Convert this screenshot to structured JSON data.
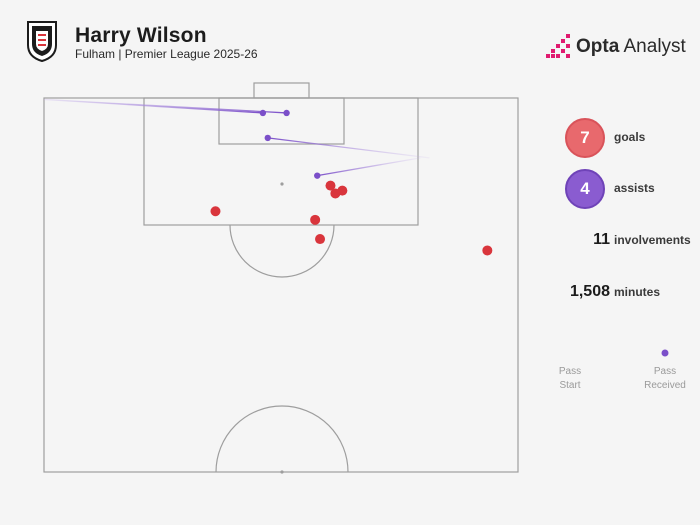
{
  "header": {
    "player_name": "Harry Wilson",
    "subtitle": "Fulham | Premier League 2025-26",
    "brand_bold": "Opta",
    "brand_rest": " Analyst",
    "crest_icon": "fulham-crest-icon",
    "brand_icon": "opta-logo-icon"
  },
  "colors": {
    "background": "#f5f5f5",
    "pitch_line": "#9e9e9e",
    "goal": "#d9353c",
    "goal_badge": "#e8696d",
    "assist": "#7b4fc9",
    "assist_badge": "#8a5cd0"
  },
  "stats": [
    {
      "value": "7",
      "label": "goals",
      "badge": "goal"
    },
    {
      "value": "4",
      "label": "assists",
      "badge": "assist"
    },
    {
      "value": "11",
      "label": "involvements",
      "badge": null
    },
    {
      "value": "1,508",
      "label": "minutes",
      "badge": null
    }
  ],
  "legend": {
    "start_label": "Pass\nStart",
    "end_label": "Pass\nReceived"
  },
  "chart_data": {
    "type": "scatter",
    "title": "",
    "pitch": "half-pitch, attacking goal at top; coordinates in metres, x 0-68 across, y 0-52.5 from goal line",
    "goals": [
      {
        "x": 24.6,
        "y": 15.9
      },
      {
        "x": 41.1,
        "y": 12.3
      },
      {
        "x": 41.8,
        "y": 13.4
      },
      {
        "x": 42.8,
        "y": 13.0
      },
      {
        "x": 38.9,
        "y": 17.1
      },
      {
        "x": 39.6,
        "y": 19.8
      },
      {
        "x": 63.6,
        "y": 21.4
      }
    ],
    "assists": [
      {
        "start": {
          "x": 0.0,
          "y": 0.2
        },
        "end": {
          "x": 34.8,
          "y": 2.1
        }
      },
      {
        "start": {
          "x": 0.0,
          "y": 0.2
        },
        "end": {
          "x": 31.4,
          "y": 2.1
        }
      },
      {
        "start": {
          "x": 55.3,
          "y": 8.4
        },
        "end": {
          "x": 32.1,
          "y": 5.6
        }
      },
      {
        "start": {
          "x": 54.0,
          "y": 8.4
        },
        "end": {
          "x": 39.2,
          "y": 10.9
        }
      }
    ]
  }
}
